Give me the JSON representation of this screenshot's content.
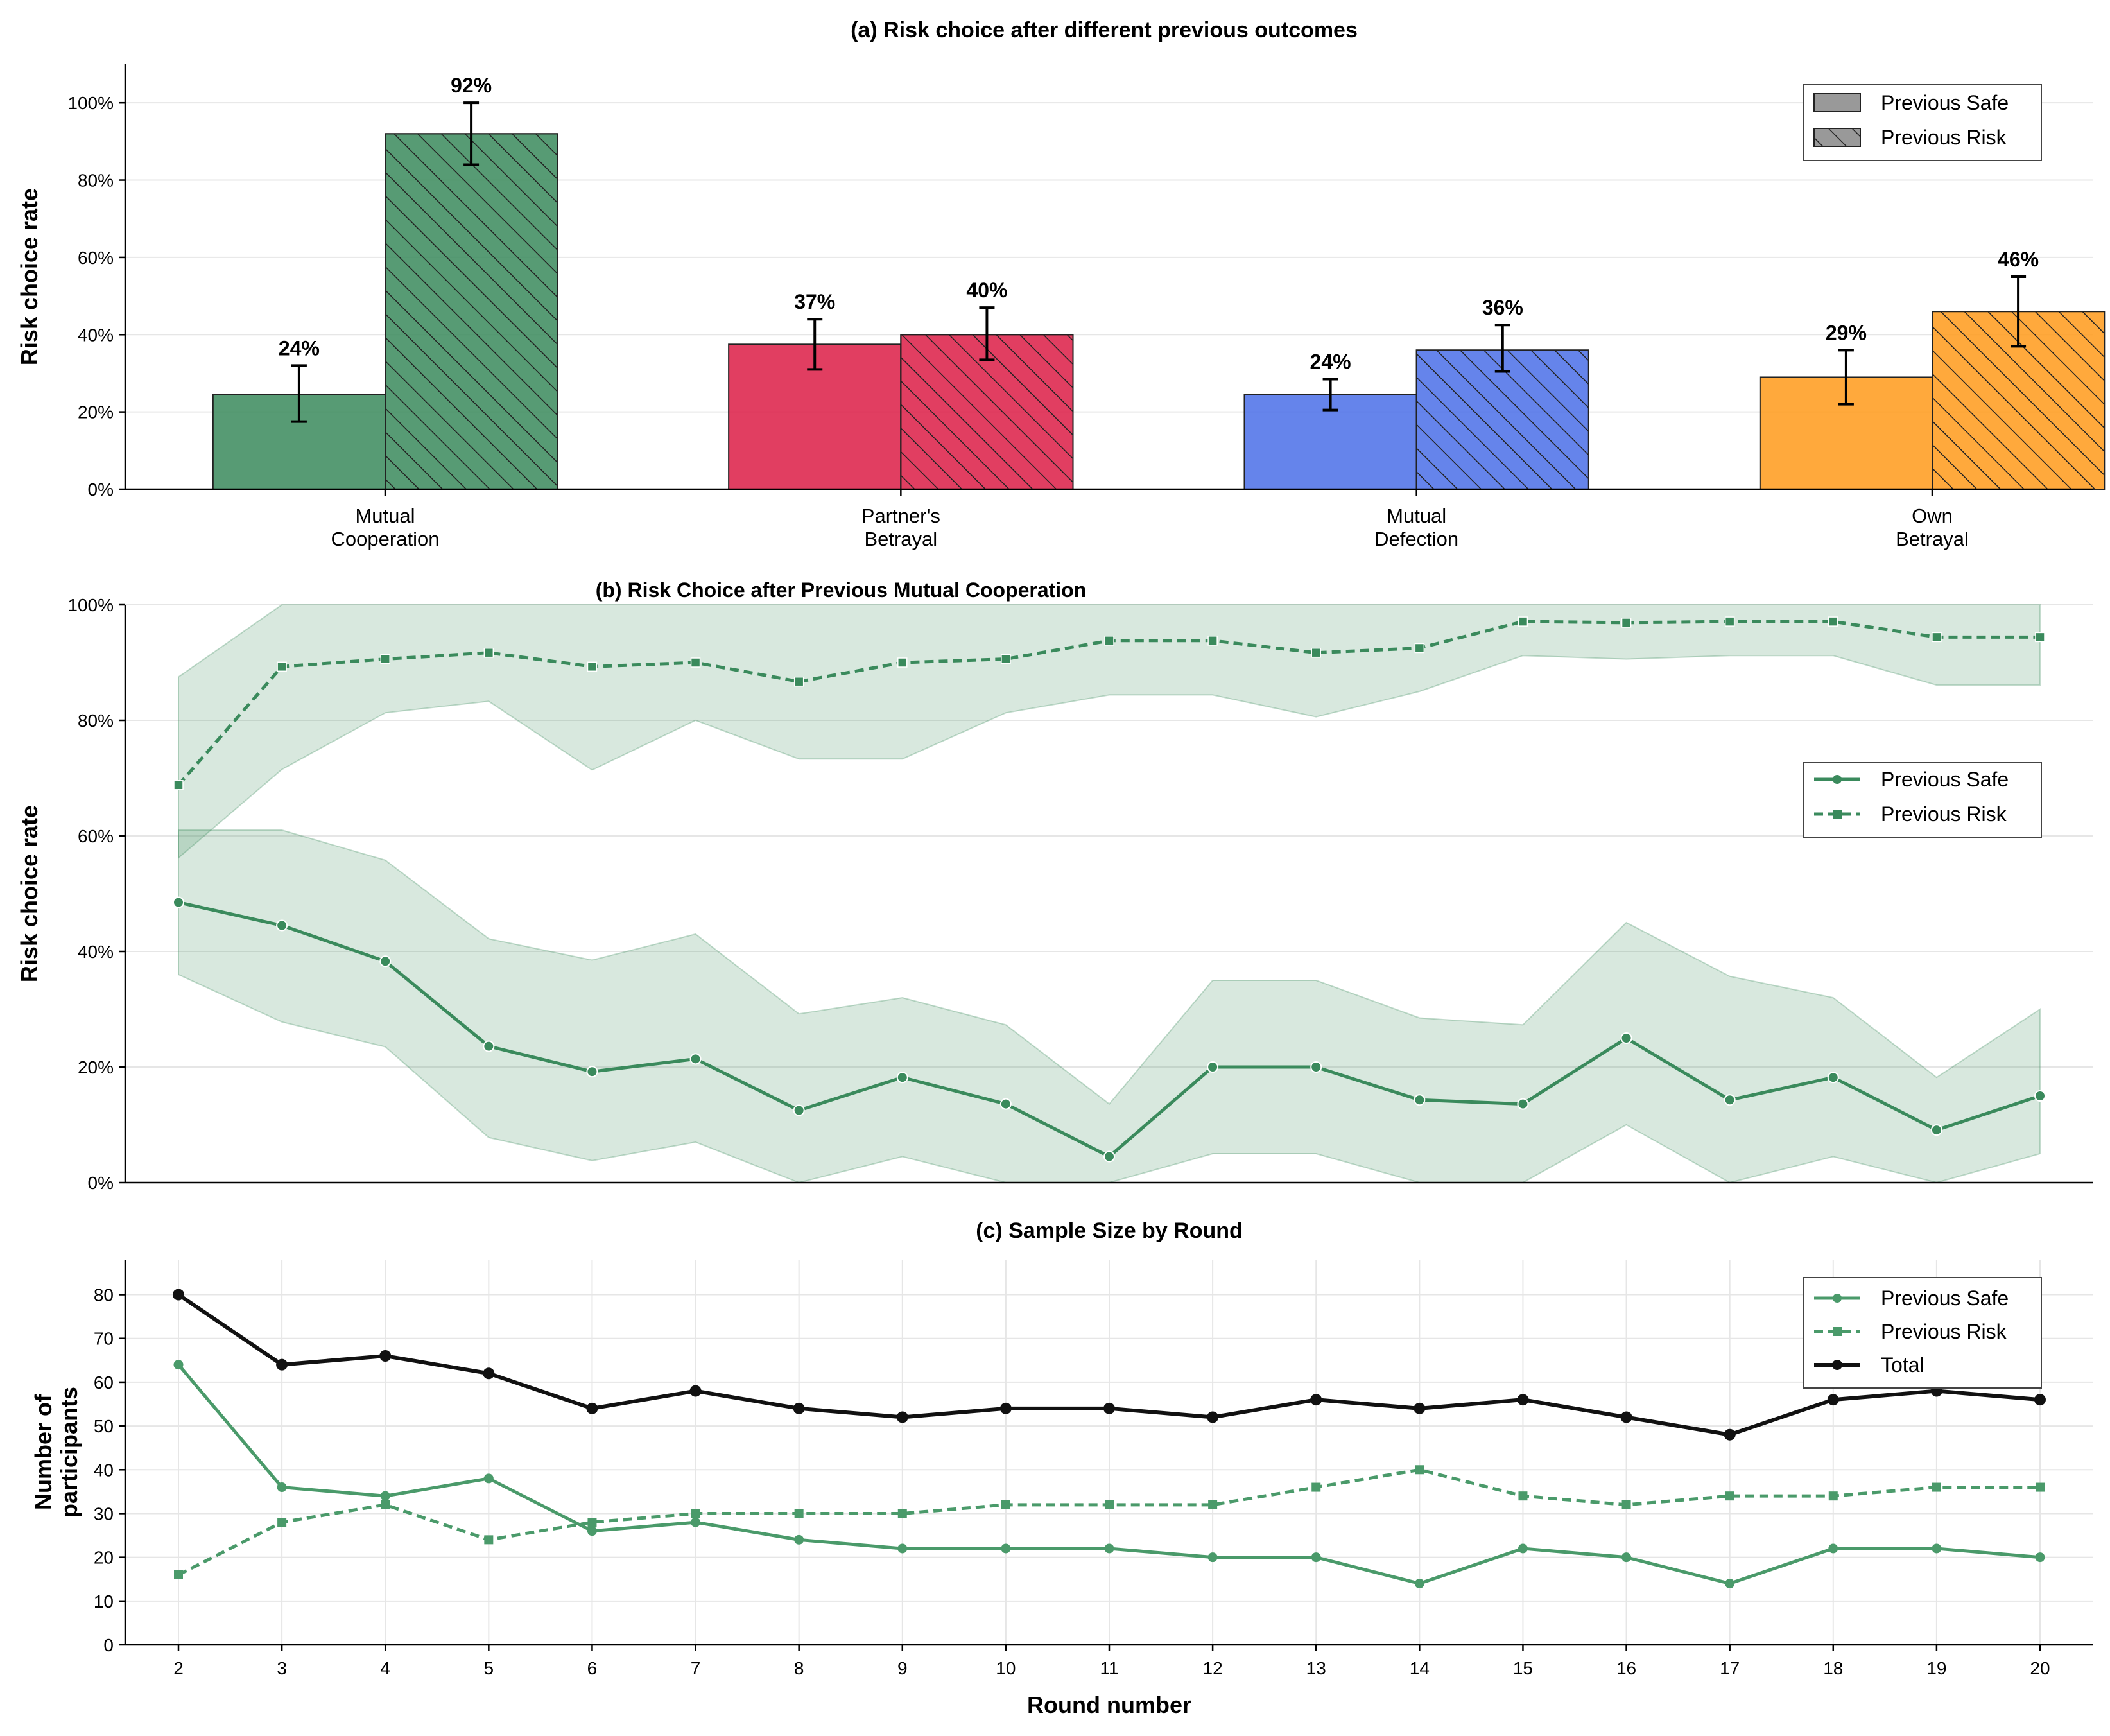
{
  "chart_data": [
    {
      "type": "bar",
      "title": "(a) Risk choice after different previous outcomes",
      "ylabel": "Risk choice rate",
      "ylim": [
        0,
        1.1
      ],
      "yticks": [
        0,
        0.2,
        0.4,
        0.6,
        0.8,
        1.0
      ],
      "ytick_labels": [
        "0%",
        "20%",
        "40%",
        "60%",
        "80%",
        "100%"
      ],
      "categories": [
        {
          "line1": "Mutual",
          "line2": "Cooperation"
        },
        {
          "line1": "Partner's",
          "line2": "Betrayal"
        },
        {
          "line1": "Mutual",
          "line2": "Defection"
        },
        {
          "line1": "Own",
          "line2": "Betrayal"
        }
      ],
      "colors": [
        "#3a8a5c",
        "#dc1c45",
        "#4a6ee8",
        "#ff9a1a"
      ],
      "series": [
        {
          "name": "Previous Safe",
          "hatch": false,
          "values": [
            0.245,
            0.375,
            0.245,
            0.29
          ],
          "err_low": [
            0.175,
            0.31,
            0.205,
            0.22
          ],
          "err_high": [
            0.32,
            0.44,
            0.285,
            0.36
          ],
          "labels": [
            "24%",
            "37%",
            "24%",
            "29%"
          ]
        },
        {
          "name": "Previous Risk",
          "hatch": true,
          "values": [
            0.92,
            0.4,
            0.36,
            0.46
          ],
          "err_low": [
            0.84,
            0.335,
            0.305,
            0.37
          ],
          "err_high": [
            1.0,
            0.47,
            0.425,
            0.55
          ],
          "labels": [
            "92%",
            "40%",
            "36%",
            "46%"
          ]
        }
      ],
      "legend": {
        "position": "upper right",
        "entries": [
          "Previous Safe",
          "Previous Risk"
        ]
      }
    },
    {
      "type": "line",
      "title": "(b) Risk Choice after Previous Mutual Cooperation",
      "ylabel": "Risk choice rate",
      "ylim": [
        0,
        1.0
      ],
      "yticks": [
        0,
        0.2,
        0.4,
        0.6,
        0.8,
        1.0
      ],
      "ytick_labels": [
        "0%",
        "20%",
        "40%",
        "60%",
        "80%",
        "100%"
      ],
      "x": [
        2,
        3,
        4,
        5,
        6,
        7,
        8,
        9,
        10,
        11,
        12,
        13,
        14,
        15,
        16,
        17,
        18,
        19,
        20
      ],
      "color": "#3a8a5c",
      "series": [
        {
          "name": "Previous Safe",
          "marker": "circle",
          "dash": false,
          "values": [
            0.485,
            0.445,
            0.383,
            0.236,
            0.192,
            0.214,
            0.125,
            0.182,
            0.136,
            0.045,
            0.2,
            0.2,
            0.143,
            0.136,
            0.25,
            0.143,
            0.182,
            0.091,
            0.15
          ],
          "ci_low": [
            0.36,
            0.278,
            0.235,
            0.078,
            0.038,
            0.07,
            0.0,
            0.045,
            0.0,
            0.0,
            0.05,
            0.05,
            0.0,
            0.0,
            0.1,
            0.0,
            0.045,
            0.0,
            0.05
          ],
          "ci_high": [
            0.61,
            0.61,
            0.558,
            0.422,
            0.385,
            0.43,
            0.292,
            0.32,
            0.273,
            0.136,
            0.35,
            0.35,
            0.285,
            0.273,
            0.45,
            0.357,
            0.32,
            0.182,
            0.3
          ]
        },
        {
          "name": "Previous Risk",
          "marker": "square",
          "dash": true,
          "values": [
            0.688,
            0.893,
            0.906,
            0.917,
            0.893,
            0.9,
            0.867,
            0.9,
            0.906,
            0.938,
            0.938,
            0.917,
            0.925,
            0.971,
            0.969,
            0.971,
            0.971,
            0.944,
            0.944
          ],
          "ci_low": [
            0.562,
            0.715,
            0.813,
            0.833,
            0.714,
            0.8,
            0.733,
            0.733,
            0.813,
            0.844,
            0.844,
            0.806,
            0.85,
            0.912,
            0.906,
            0.912,
            0.912,
            0.861,
            0.861
          ],
          "ci_high": [
            0.875,
            1.0,
            1.0,
            1.0,
            1.0,
            1.0,
            1.0,
            1.0,
            1.0,
            1.0,
            1.0,
            1.0,
            1.0,
            1.0,
            1.0,
            1.0,
            1.0,
            1.0,
            1.0
          ]
        }
      ],
      "legend": {
        "position": "center right",
        "entries": [
          "Previous Safe",
          "Previous Risk"
        ]
      }
    },
    {
      "type": "line",
      "title": "(c) Sample Size by Round",
      "xlabel": "Round number",
      "ylabel_lines": [
        "Number of",
        "participants"
      ],
      "ylim": [
        0,
        88
      ],
      "yticks": [
        0,
        10,
        20,
        30,
        40,
        50,
        60,
        70,
        80
      ],
      "x": [
        2,
        3,
        4,
        5,
        6,
        7,
        8,
        9,
        10,
        11,
        12,
        13,
        14,
        15,
        16,
        17,
        18,
        19,
        20
      ],
      "series": [
        {
          "name": "Previous Safe",
          "color": "#4a9a6a",
          "marker": "circle",
          "dash": false,
          "values": [
            64,
            36,
            34,
            38,
            26,
            28,
            24,
            22,
            22,
            22,
            20,
            20,
            14,
            22,
            20,
            14,
            22,
            22,
            20
          ]
        },
        {
          "name": "Previous Risk",
          "color": "#4a9a6a",
          "marker": "square",
          "dash": true,
          "values": [
            16,
            28,
            32,
            24,
            28,
            30,
            30,
            30,
            32,
            32,
            32,
            36,
            40,
            34,
            32,
            34,
            34,
            36,
            36
          ]
        },
        {
          "name": "Total",
          "color": "#111111",
          "marker": "circle",
          "dash": false,
          "values": [
            80,
            64,
            66,
            62,
            54,
            58,
            54,
            52,
            54,
            54,
            52,
            56,
            54,
            56,
            52,
            48,
            56,
            58,
            56
          ]
        }
      ],
      "legend": {
        "position": "upper right",
        "entries": [
          "Previous Safe",
          "Previous Risk",
          "Total"
        ]
      }
    }
  ]
}
